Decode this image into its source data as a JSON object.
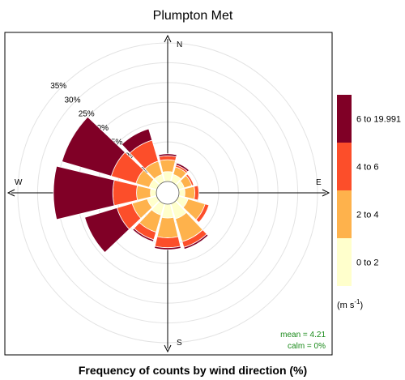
{
  "chart_data": {
    "type": "polar-bar",
    "title": "Plumpton Met",
    "xlabel": "Frequency of counts by wind direction (%)",
    "rings": [
      5,
      10,
      15,
      20,
      25,
      30,
      35
    ],
    "ring_label_suffix": "%",
    "rmax": 35,
    "compass": {
      "N": "N",
      "E": "E",
      "S": "S",
      "W": "W"
    },
    "directions_deg": [
      0,
      30,
      60,
      90,
      120,
      150,
      180,
      210,
      240,
      270,
      300,
      330
    ],
    "series": [
      {
        "name": "0 to 2",
        "color": "#FFFFCC",
        "values": [
          2.5,
          2.0,
          1.5,
          1.5,
          2.5,
          4.0,
          3.5,
          3.0,
          2.5,
          1.5,
          2.0,
          2.0
        ]
      },
      {
        "name": "2 to 4",
        "color": "#FEB24C",
        "values": [
          3.0,
          2.0,
          2.0,
          2.5,
          4.5,
          6.0,
          5.0,
          4.5,
          4.0,
          3.5,
          3.5,
          3.5
        ]
      },
      {
        "name": "4 to 6",
        "color": "#FC4E2A",
        "values": [
          1.0,
          0.5,
          0.5,
          1.0,
          1.0,
          1.5,
          2.5,
          2.0,
          4.0,
          6.0,
          6.5,
          5.5
        ]
      },
      {
        "name": "6 to 19.991",
        "color": "#800026",
        "values": [
          0.5,
          0.5,
          0.0,
          0.0,
          0.0,
          0.5,
          0.5,
          0.5,
          8.5,
          15.0,
          13.0,
          3.0
        ]
      }
    ],
    "legend_unit": "(m s",
    "legend_unit_sup": "-1",
    "legend_unit_close": ")",
    "legend_placement": "right",
    "mean_text": "mean = 4.21",
    "calm_text": "calm = 0%"
  }
}
